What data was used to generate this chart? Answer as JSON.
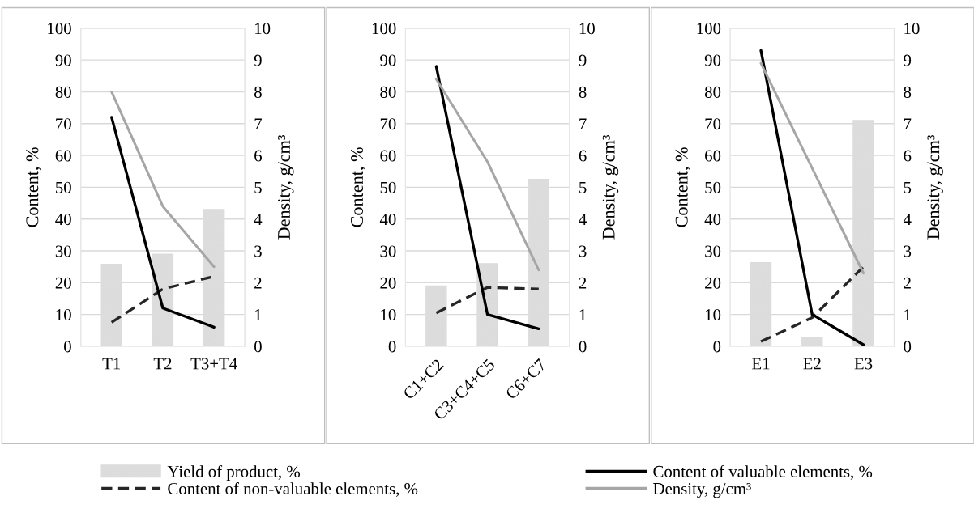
{
  "chart_data": [
    {
      "type": "bar",
      "categories": [
        "T1",
        "T2",
        "T3+T4"
      ],
      "ylabel": "Content, %",
      "y2label": "Density, g/cm³",
      "ylim": [
        0,
        100
      ],
      "yticks": [
        0,
        10,
        20,
        30,
        40,
        50,
        60,
        70,
        80,
        90,
        100
      ],
      "y2lim": [
        0,
        10
      ],
      "y2ticks": [
        0,
        1,
        2,
        3,
        4,
        5,
        6,
        7,
        8,
        9,
        10
      ],
      "grid": "y",
      "legend": "bottom",
      "series": [
        {
          "name": "Yield of product, %",
          "color": "#dcdcdc",
          "values": [
            25.8,
            29,
            43
          ]
        },
        {
          "name": "Content of non-valuable elements, %",
          "type": "line",
          "color": "#262626",
          "line_style": "dashed",
          "values": [
            7.5,
            18,
            22
          ]
        },
        {
          "name": "Content of valuable elements, %",
          "type": "line",
          "color": "#000000",
          "line_style": "solid",
          "values": [
            72,
            12,
            6
          ]
        },
        {
          "name": "Density, g/cm³",
          "type": "line",
          "color": "#a6a6a6",
          "line_style": "solid",
          "axis": "y2",
          "values": [
            8.0,
            4.4,
            2.5
          ]
        }
      ]
    },
    {
      "type": "bar",
      "categories": [
        "C1+C2",
        "C3+C4+C5",
        "C6+C7"
      ],
      "ylabel": "Content, %",
      "y2label": "Density, g/cm³",
      "ylim": [
        0,
        100
      ],
      "yticks": [
        0,
        10,
        20,
        30,
        40,
        50,
        60,
        70,
        80,
        90,
        100
      ],
      "y2lim": [
        0,
        10
      ],
      "y2ticks": [
        0,
        1,
        2,
        3,
        4,
        5,
        6,
        7,
        8,
        9,
        10
      ],
      "grid": "y",
      "series": [
        {
          "color": "#dcdcdc",
          "values": [
            19,
            26,
            52.5
          ]
        },
        {
          "type": "line",
          "color": "#262626",
          "line_style": "dashed",
          "values": [
            10.5,
            18.5,
            18
          ]
        },
        {
          "type": "line",
          "color": "#000000",
          "line_style": "solid",
          "values": [
            88,
            10,
            5.5
          ]
        },
        {
          "type": "line",
          "color": "#a6a6a6",
          "line_style": "solid",
          "axis": "y2",
          "values": [
            8.4,
            5.8,
            2.4
          ]
        }
      ]
    },
    {
      "type": "bar",
      "categories": [
        "E1",
        "E2",
        "E3"
      ],
      "ylabel": "Content, %",
      "y2label": "Density, g/cm³",
      "ylim": [
        0,
        100
      ],
      "yticks": [
        0,
        10,
        20,
        30,
        40,
        50,
        60,
        70,
        80,
        90,
        100
      ],
      "y2lim": [
        0,
        10
      ],
      "y2ticks": [
        0,
        1,
        2,
        3,
        4,
        5,
        6,
        7,
        8,
        9,
        10
      ],
      "grid": "y",
      "series": [
        {
          "color": "#dcdcdc",
          "values": [
            26.3,
            2.8,
            71
          ]
        },
        {
          "type": "line",
          "color": "#262626",
          "line_style": "dashed",
          "values": [
            1.5,
            9,
            25
          ]
        },
        {
          "type": "line",
          "color": "#000000",
          "line_style": "solid",
          "values": [
            93,
            10,
            0.5
          ]
        },
        {
          "type": "line",
          "color": "#a6a6a6",
          "line_style": "solid",
          "axis": "y2",
          "values": [
            8.9,
            5.6,
            2.3
          ]
        }
      ]
    }
  ]
}
